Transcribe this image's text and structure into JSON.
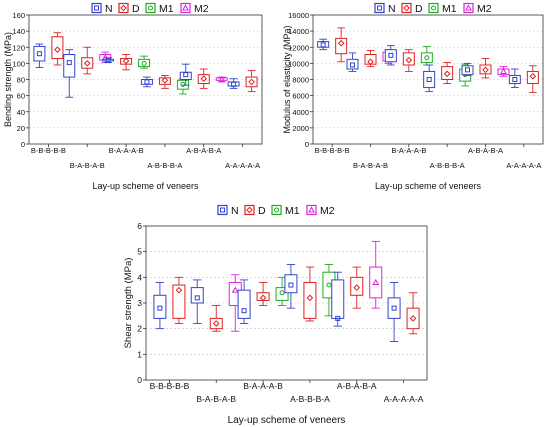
{
  "legend": {
    "entries": [
      {
        "label": "N",
        "color": "#3344cc",
        "marker": "square"
      },
      {
        "label": "D",
        "color": "#dd2222",
        "marker": "diamond"
      },
      {
        "label": "M1",
        "color": "#22aa22",
        "marker": "circle"
      },
      {
        "label": "M2",
        "color": "#dd22dd",
        "marker": "triangle"
      }
    ]
  },
  "chart_data": [
    {
      "type": "box",
      "title": "",
      "xlabel": "Lay-up scheme of veneers",
      "ylabel": "Bending strength (MPa)",
      "ylim": [
        0,
        160
      ],
      "yticks": [
        "0",
        "20",
        "40",
        "60",
        "80",
        "100",
        "120",
        "140",
        "160"
      ],
      "grid": true,
      "legend_position": "top",
      "categories": [
        "B-B-B-B-B",
        "B-A-B-A-B",
        "B-A-A-A-B",
        "A-B-B-B-A",
        "A-B-A-B-A",
        "A-A-A-A-A"
      ],
      "series": [
        {
          "name": "N",
          "boxes": [
            {
              "min": 95,
              "q1": 103,
              "mean": 112,
              "q3": 121,
              "max": 124
            },
            {
              "min": 58,
              "q1": 83,
              "mean": 101,
              "q3": 111,
              "max": 117
            },
            {
              "min": 101,
              "q1": 103,
              "mean": 104,
              "q3": 105,
              "max": 107
            },
            {
              "min": 71,
              "q1": 74,
              "mean": 77,
              "q3": 80,
              "max": 83
            },
            {
              "min": 73,
              "q1": 80,
              "mean": 86,
              "q3": 89,
              "max": 99
            },
            {
              "min": 69,
              "q1": 72,
              "mean": 74,
              "q3": 77,
              "max": 81
            }
          ]
        },
        {
          "name": "D",
          "boxes": [
            {
              "min": 98,
              "q1": 106,
              "mean": 117,
              "q3": 133,
              "max": 138
            },
            {
              "min": 87,
              "q1": 94,
              "mean": 100,
              "q3": 107,
              "max": 120
            },
            {
              "min": 92,
              "q1": 99,
              "mean": 103,
              "q3": 106,
              "max": 111
            },
            {
              "min": 69,
              "q1": 74,
              "mean": 79,
              "q3": 82,
              "max": 85
            },
            {
              "min": 69,
              "q1": 75,
              "mean": 81,
              "q3": 86,
              "max": 93
            },
            {
              "min": 65,
              "q1": 71,
              "mean": 77,
              "q3": 83,
              "max": 91
            }
          ]
        },
        {
          "name": "M1",
          "boxes": [
            null,
            null,
            {
              "min": 94,
              "q1": 96,
              "mean": 100,
              "q3": 105,
              "max": 109
            },
            {
              "min": 62,
              "q1": 68,
              "mean": 74,
              "q3": 79,
              "max": 81
            },
            null,
            null
          ]
        },
        {
          "name": "M2",
          "boxes": [
            null,
            {
              "min": 101,
              "q1": 104,
              "mean": 107,
              "q3": 111,
              "max": 114
            },
            null,
            null,
            {
              "min": 77,
              "q1": 79,
              "mean": 80,
              "q3": 82,
              "max": 83
            },
            null
          ]
        }
      ]
    },
    {
      "type": "box",
      "title": "",
      "xlabel": "Lay-up scheme of veneers",
      "ylabel": "Modulus of elasticity (MPa)",
      "ylim": [
        0,
        16000
      ],
      "yticks": [
        "0",
        "2000",
        "4000",
        "6000",
        "8000",
        "10000",
        "12000",
        "14000",
        "16000"
      ],
      "grid": true,
      "legend_position": "top",
      "categories": [
        "B-B-B-B-B",
        "B-A-B-A-B",
        "B-A-A-A-B",
        "A-B-B-B-A",
        "A-B-A-B-A",
        "A-A-A-A-A"
      ],
      "series": [
        {
          "name": "N",
          "boxes": [
            {
              "min": 11700,
              "q1": 12000,
              "mean": 12300,
              "q3": 12700,
              "max": 13000
            },
            {
              "min": 9000,
              "q1": 9300,
              "mean": 9800,
              "q3": 10500,
              "max": 11300
            },
            {
              "min": 9800,
              "q1": 10200,
              "mean": 11000,
              "q3": 11700,
              "max": 12200
            },
            {
              "min": 6500,
              "q1": 7000,
              "mean": 8000,
              "q3": 9000,
              "max": 9800
            },
            {
              "min": 8500,
              "q1": 8600,
              "mean": 9200,
              "q3": 9700,
              "max": 10000
            },
            {
              "min": 7000,
              "q1": 7500,
              "mean": 8000,
              "q3": 8500,
              "max": 9300
            }
          ]
        },
        {
          "name": "D",
          "boxes": [
            {
              "min": 10200,
              "q1": 11200,
              "mean": 12500,
              "q3": 13100,
              "max": 14400
            },
            {
              "min": 9600,
              "q1": 9900,
              "mean": 10200,
              "q3": 11100,
              "max": 11600
            },
            {
              "min": 9000,
              "q1": 9800,
              "mean": 10400,
              "q3": 11300,
              "max": 11700
            },
            {
              "min": 7500,
              "q1": 8000,
              "mean": 8700,
              "q3": 9600,
              "max": 10100
            },
            {
              "min": 8200,
              "q1": 8700,
              "mean": 9200,
              "q3": 9800,
              "max": 10600
            },
            {
              "min": 6400,
              "q1": 7500,
              "mean": 8400,
              "q3": 9000,
              "max": 9700
            }
          ]
        },
        {
          "name": "M1",
          "boxes": [
            null,
            null,
            {
              "min": 9800,
              "q1": 10100,
              "mean": 10700,
              "q3": 11300,
              "max": 12100
            },
            {
              "min": 7200,
              "q1": 7800,
              "mean": 8600,
              "q3": 9300,
              "max": 9900
            },
            null,
            null
          ]
        },
        {
          "name": "M2",
          "boxes": [
            null,
            {
              "min": 10000,
              "q1": 10300,
              "mean": 10900,
              "q3": 11400,
              "max": 11700
            },
            null,
            null,
            {
              "min": 8400,
              "q1": 8600,
              "mean": 9000,
              "q3": 9300,
              "max": 9600
            },
            null
          ]
        }
      ]
    },
    {
      "type": "box",
      "title": "",
      "xlabel": "Lay-up scheme of veneers",
      "ylabel": "Shear strength (MPa)",
      "ylim": [
        0,
        6
      ],
      "yticks": [
        "0",
        "1",
        "2",
        "3",
        "4",
        "5",
        "6"
      ],
      "grid": true,
      "legend_position": "top",
      "categories": [
        "B-B-B-B-B",
        "B-A-B-A-B",
        "B-A-A-A-B",
        "A-B-B-B-A",
        "A-B-A-B-A",
        "A-A-A-A-A"
      ],
      "series": [
        {
          "name": "N",
          "boxes": [
            {
              "min": 2.0,
              "q1": 2.4,
              "mean": 2.8,
              "q3": 3.3,
              "max": 3.8
            },
            {
              "min": 2.2,
              "q1": 3.0,
              "mean": 3.2,
              "q3": 3.6,
              "max": 3.9
            },
            {
              "min": 2.2,
              "q1": 2.4,
              "mean": 2.7,
              "q3": 3.5,
              "max": 3.9
            },
            {
              "min": 2.8,
              "q1": 3.4,
              "mean": 3.7,
              "q3": 4.1,
              "max": 4.5
            },
            {
              "min": 2.1,
              "q1": 2.4,
              "mean": 2.4,
              "q3": 3.9,
              "max": 4.2
            },
            {
              "min": 1.5,
              "q1": 2.4,
              "mean": 2.8,
              "q3": 3.2,
              "max": 3.8
            }
          ]
        },
        {
          "name": "D",
          "boxes": [
            {
              "min": 2.2,
              "q1": 2.4,
              "mean": 3.5,
              "q3": 3.7,
              "max": 4.0
            },
            {
              "min": 1.9,
              "q1": 2.0,
              "mean": 2.2,
              "q3": 2.4,
              "max": 2.9
            },
            {
              "min": 2.9,
              "q1": 3.1,
              "mean": 3.2,
              "q3": 3.4,
              "max": 3.8
            },
            {
              "min": 2.3,
              "q1": 2.4,
              "mean": 3.2,
              "q3": 3.8,
              "max": 4.4
            },
            {
              "min": 2.8,
              "q1": 3.3,
              "mean": 3.6,
              "q3": 4.0,
              "max": 4.4
            },
            {
              "min": 1.8,
              "q1": 2.0,
              "mean": 2.4,
              "q3": 2.8,
              "max": 3.4
            }
          ]
        },
        {
          "name": "M1",
          "boxes": [
            null,
            null,
            {
              "min": 2.9,
              "q1": 3.1,
              "mean": 3.4,
              "q3": 3.6,
              "max": 4.0
            },
            {
              "min": 2.5,
              "q1": 3.2,
              "mean": 3.7,
              "q3": 4.2,
              "max": 4.5
            },
            null,
            null
          ]
        },
        {
          "name": "M2",
          "boxes": [
            null,
            {
              "min": 1.9,
              "q1": 2.9,
              "mean": 3.5,
              "q3": 3.8,
              "max": 4.1
            },
            null,
            null,
            {
              "min": 2.8,
              "q1": 3.2,
              "mean": 3.8,
              "q3": 4.4,
              "max": 5.4
            },
            null
          ]
        }
      ]
    }
  ]
}
